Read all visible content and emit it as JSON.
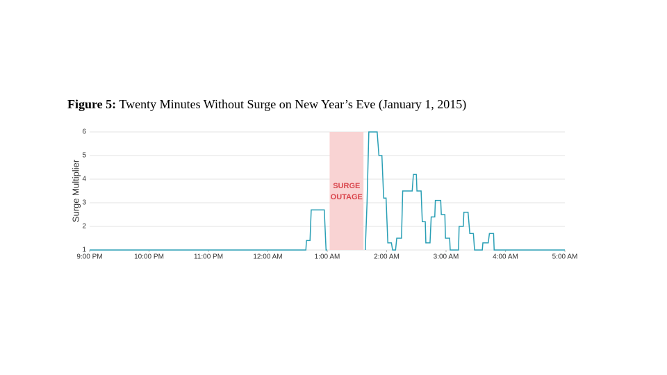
{
  "chart_data": {
    "type": "line",
    "title_label": "Figure 5:",
    "title": "Twenty Minutes Without Surge on New Year’s Eve (January 1, 2015)",
    "y_label": "Surge Multiplier",
    "x": [
      21.0,
      24.64,
      24.65,
      24.71,
      24.73,
      24.95,
      24.98,
      25.0,
      25.35,
      25.64,
      25.67,
      25.7,
      25.84,
      25.87,
      25.92,
      25.95,
      25.99,
      26.02,
      26.08,
      26.1,
      26.15,
      26.17,
      26.25,
      26.27,
      26.43,
      26.45,
      26.5,
      26.51,
      26.58,
      26.6,
      26.65,
      26.66,
      26.73,
      26.75,
      26.81,
      26.82,
      26.91,
      26.92,
      26.98,
      26.99,
      27.06,
      27.07,
      27.21,
      27.22,
      27.29,
      27.3,
      27.37,
      27.4,
      27.46,
      27.48,
      27.61,
      27.62,
      27.71,
      27.73,
      27.8,
      27.81,
      29.0
    ],
    "series": [
      {
        "color": "#2a9fb5",
        "values": [
          1,
          1,
          1.4,
          1.4,
          2.7,
          2.7,
          1,
          1,
          null,
          1,
          3,
          6,
          6,
          5,
          5,
          3.2,
          3.2,
          1.3,
          1.3,
          1,
          1,
          1.5,
          1.5,
          3.5,
          3.5,
          4.2,
          4.2,
          3.5,
          3.5,
          2.2,
          2.2,
          1.3,
          1.3,
          2.4,
          2.4,
          3.1,
          3.1,
          2.5,
          2.5,
          1.5,
          1.5,
          1,
          1,
          2,
          2,
          2.6,
          2.6,
          1.7,
          1.7,
          1,
          1,
          1.3,
          1.3,
          1.7,
          1.7,
          1,
          1
        ]
      }
    ],
    "xlim": [
      21,
      29
    ],
    "xticks": [
      {
        "value": 21,
        "label": "9:00 PM"
      },
      {
        "value": 22,
        "label": "10:00 PM"
      },
      {
        "value": 23,
        "label": "11:00 PM"
      },
      {
        "value": 24,
        "label": "12:00 AM"
      },
      {
        "value": 25,
        "label": "1:00 AM"
      },
      {
        "value": 26,
        "label": "2:00 AM"
      },
      {
        "value": 27,
        "label": "3:00 AM"
      },
      {
        "value": 28,
        "label": "4:00 AM"
      },
      {
        "value": 29,
        "label": "5:00 AM"
      }
    ],
    "ylim": [
      1,
      6
    ],
    "yticks": [
      1,
      2,
      3,
      4,
      5,
      6
    ],
    "grid": true,
    "shaded_region": {
      "xlim": [
        25.04,
        25.61
      ],
      "color": "#f9d3d3",
      "label_color": "#d9444b",
      "label": [
        "SURGE",
        "OUTAGE"
      ]
    }
  }
}
